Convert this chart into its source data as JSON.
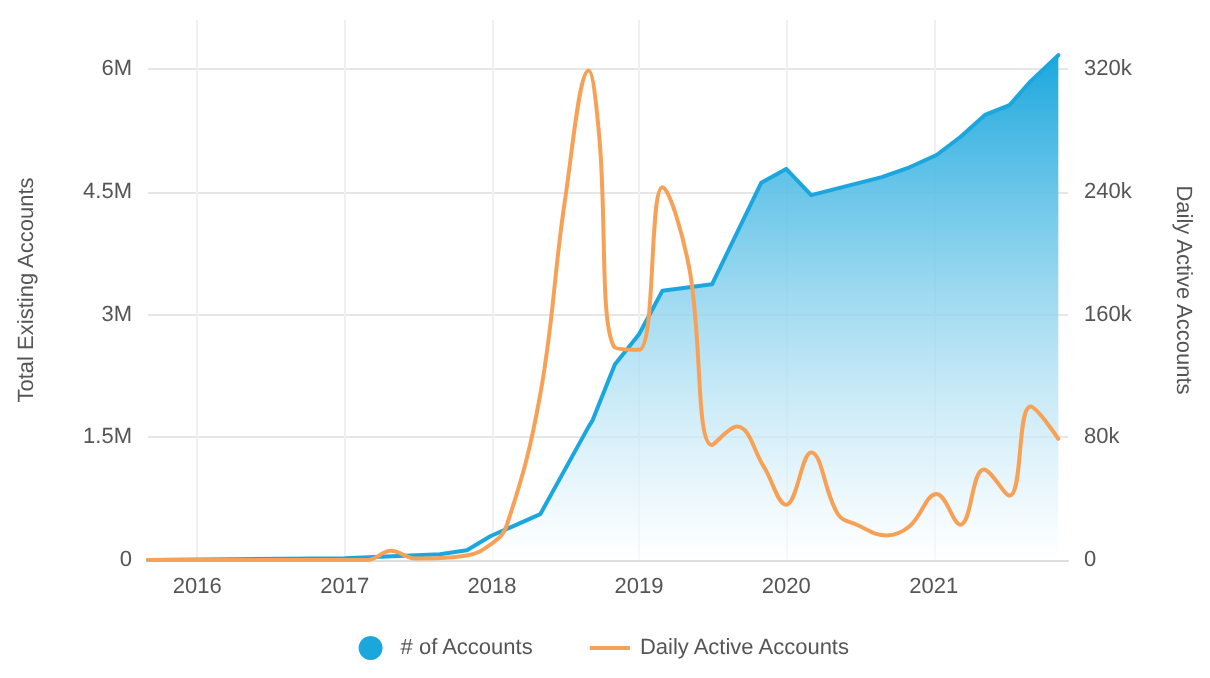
{
  "chart_data": {
    "type": "area",
    "xlabel": null,
    "ylabel": "Total Existing Accounts",
    "y2label": "Daily Active Accounts",
    "xlim": [
      "2015-09-01",
      "2021-11-30"
    ],
    "xticks": [
      {
        "value": "2016-01-01",
        "label": "2016"
      },
      {
        "value": "2017-01-01",
        "label": "2017"
      },
      {
        "value": "2018-01-01",
        "label": "2018"
      },
      {
        "value": "2019-01-01",
        "label": "2019"
      },
      {
        "value": "2020-01-01",
        "label": "2020"
      },
      {
        "value": "2021-01-01",
        "label": "2021"
      }
    ],
    "ylim": [
      0,
      6600000
    ],
    "yticks": [
      {
        "value": 0,
        "label": "0"
      },
      {
        "value": 1500000,
        "label": "1.5M"
      },
      {
        "value": 3000000,
        "label": "3M"
      },
      {
        "value": 4500000,
        "label": "4.5M"
      },
      {
        "value": 6000000,
        "label": "6M"
      }
    ],
    "y2lim": [
      0,
      352000
    ],
    "y2ticks": [
      {
        "value": 0,
        "label": "0"
      },
      {
        "value": 80000,
        "label": "80k"
      },
      {
        "value": 160000,
        "label": "160k"
      },
      {
        "value": 240000,
        "label": "240k"
      },
      {
        "value": 320000,
        "label": "320k"
      }
    ],
    "grid": true,
    "legend": "bottom",
    "series": [
      {
        "name": "# of Accounts",
        "color": "#1ba7dd",
        "marker": "none",
        "x": [
          "2015-09-01",
          "2017-01-01",
          "2017-08-25",
          "2017-10-31",
          "2017-12-28",
          "2018-05-01",
          "2018-08-29",
          "2018-09-08",
          "2018-11-02",
          "2019-01-01",
          "2019-02-28",
          "2019-07-01",
          "2019-10-31",
          "2020-01-01",
          "2020-03-03",
          "2020-08-25",
          "2020-11-02",
          "2021-01-08",
          "2021-03-08",
          "2021-05-08",
          "2021-07-08",
          "2021-08-29",
          "2021-11-06"
        ],
        "values": [
          0,
          20000,
          70000,
          120000,
          290000,
          560000,
          1630000,
          1710000,
          2390000,
          2760000,
          3290000,
          3370000,
          4610000,
          4780000,
          4460000,
          4680000,
          4800000,
          4950000,
          5170000,
          5440000,
          5560000,
          5850000,
          6170000
        ]
      },
      {
        "name": "Daily Active Accounts",
        "type": "line",
        "axis": "y2",
        "color": "#f7a156",
        "marker": "none",
        "x": [
          "2015-09-01",
          "2017-02-25",
          "2017-04-26",
          "2017-06-24",
          "2017-10-31",
          "2017-12-28",
          "2018-02-06",
          "2018-05-01",
          "2018-07-01",
          "2018-08-29",
          "2018-09-24",
          "2018-10-31",
          "2019-01-01",
          "2019-02-28",
          "2019-05-05",
          "2019-07-01",
          "2019-09-01",
          "2019-11-06",
          "2020-01-01",
          "2020-03-03",
          "2020-05-08",
          "2020-06-24",
          "2020-09-06",
          "2020-11-02",
          "2021-01-08",
          "2021-03-08",
          "2021-05-05",
          "2021-07-08",
          "2021-08-29",
          "2021-11-06"
        ],
        "values": [
          0,
          0,
          6000,
          1000,
          3000,
          10000,
          22000,
          108000,
          234000,
          319000,
          277000,
          139000,
          137000,
          243000,
          191000,
          75000,
          87000,
          61000,
          36000,
          70000,
          30000,
          23000,
          16000,
          22000,
          43000,
          23000,
          59000,
          42000,
          100000,
          79000
        ]
      }
    ]
  }
}
